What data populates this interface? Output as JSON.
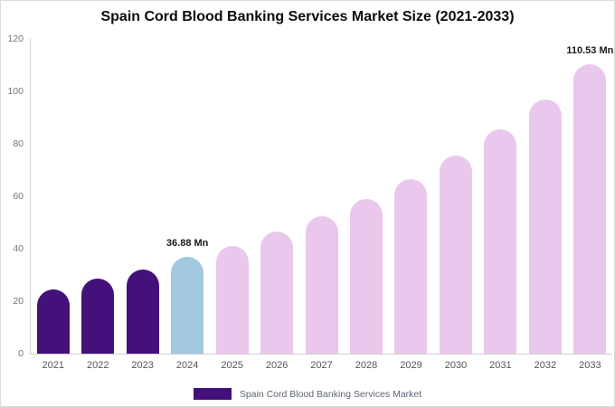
{
  "title": "Spain Cord Blood Banking Services Market Size (2021-2033)",
  "legend": {
    "label": "Spain Cord Blood Banking Services Market",
    "swatch_color": "#44107a"
  },
  "colors": {
    "historical": "#44107a",
    "highlight": "#a2c8e2",
    "forecast": "#eac7ec",
    "axis": "#cfcfcf",
    "tick_text": "#757575",
    "label_text": "#1a1a1a"
  },
  "chart_data": {
    "type": "bar",
    "title": "Spain Cord Blood Banking Services Market Size (2021-2033)",
    "xlabel": "",
    "ylabel": "",
    "ylim": [
      0,
      120
    ],
    "y_ticks": [
      0,
      20,
      40,
      60,
      80,
      100,
      120
    ],
    "grid": false,
    "legend_position": "bottom",
    "categories": [
      "2021",
      "2022",
      "2023",
      "2024",
      "2025",
      "2026",
      "2027",
      "2028",
      "2029",
      "2030",
      "2031",
      "2032",
      "2033"
    ],
    "values": [
      24.5,
      28.5,
      32,
      36.88,
      41.2,
      46.5,
      52.4,
      59,
      66.5,
      75.5,
      85.5,
      97,
      110.53
    ],
    "bar_color_keys": [
      "historical",
      "historical",
      "historical",
      "highlight",
      "forecast",
      "forecast",
      "forecast",
      "forecast",
      "forecast",
      "forecast",
      "forecast",
      "forecast",
      "forecast"
    ],
    "point_labels": [
      "",
      "",
      "",
      "36.88 Mn",
      "",
      "",
      "",
      "",
      "",
      "",
      "",
      "",
      "110.53 Mn"
    ]
  }
}
